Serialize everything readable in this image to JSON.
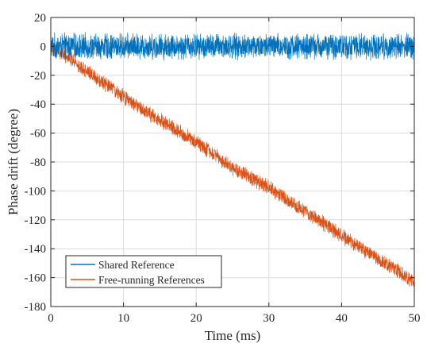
{
  "chart_data": {
    "type": "line",
    "title": "",
    "xlabel": "Time (ms)",
    "ylabel": "Phase drift (degree)",
    "xlim": [
      0,
      50
    ],
    "ylim": [
      -180,
      20
    ],
    "xticks": [
      0,
      10,
      20,
      30,
      40,
      50
    ],
    "yticks": [
      20,
      0,
      -20,
      -40,
      -60,
      -80,
      -100,
      -120,
      -140,
      -160,
      -180
    ],
    "grid": true,
    "legend": "bottom-left",
    "series": [
      {
        "name": "Shared Reference",
        "color": "#0072BD",
        "x": [
          0,
          5,
          10,
          15,
          20,
          25,
          30,
          35,
          40,
          45,
          50
        ],
        "y": [
          0,
          0,
          0,
          0,
          0,
          0,
          0,
          0,
          0,
          0,
          0
        ],
        "noise_amplitude": 10
      },
      {
        "name": "Free-running References",
        "color": "#D95319",
        "x": [
          0,
          5,
          10,
          15,
          20,
          25,
          30,
          35,
          40,
          45,
          50
        ],
        "y": [
          1,
          -17,
          -35,
          -51,
          -66,
          -84,
          -98,
          -114,
          -131,
          -147,
          -163
        ],
        "noise_amplitude": 6
      }
    ]
  }
}
